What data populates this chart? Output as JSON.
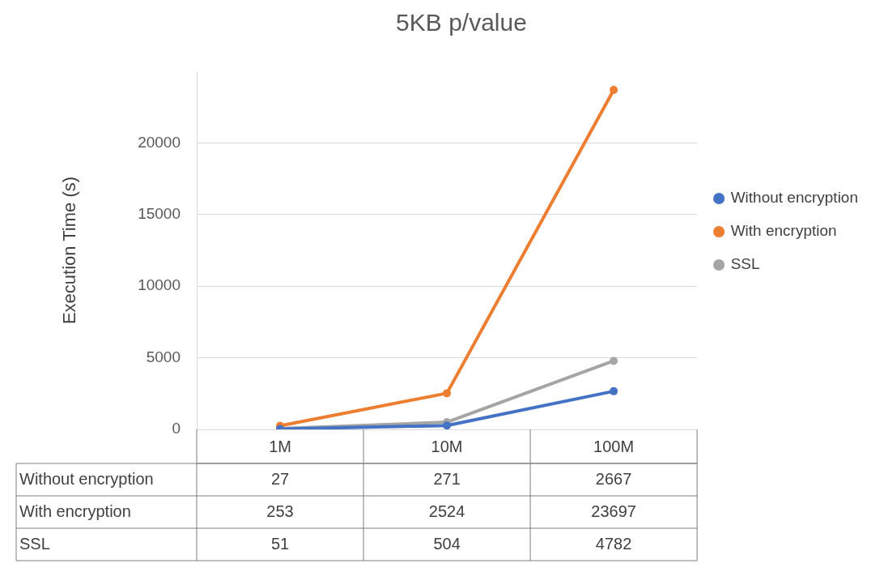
{
  "chart_data": {
    "type": "line",
    "title": "5KB p/value",
    "ylabel": "Execution Time (s)",
    "categories": [
      "1M",
      "10M",
      "100M"
    ],
    "series": [
      {
        "name": "Without encryption",
        "color": "#4472c4",
        "values": [
          27,
          271,
          2667
        ]
      },
      {
        "name": "With encryption",
        "color": "#ed7d31",
        "values": [
          253,
          2524,
          23697
        ]
      },
      {
        "name": "SSL",
        "color": "#a5a5a5",
        "values": [
          51,
          504,
          4782
        ]
      }
    ],
    "ylim": [
      0,
      25000
    ],
    "yticks": [
      0,
      5000,
      10000,
      15000,
      20000
    ],
    "grid": "y",
    "legend": "right",
    "marker": "circle",
    "line_style": "solid",
    "data_labels": true
  }
}
